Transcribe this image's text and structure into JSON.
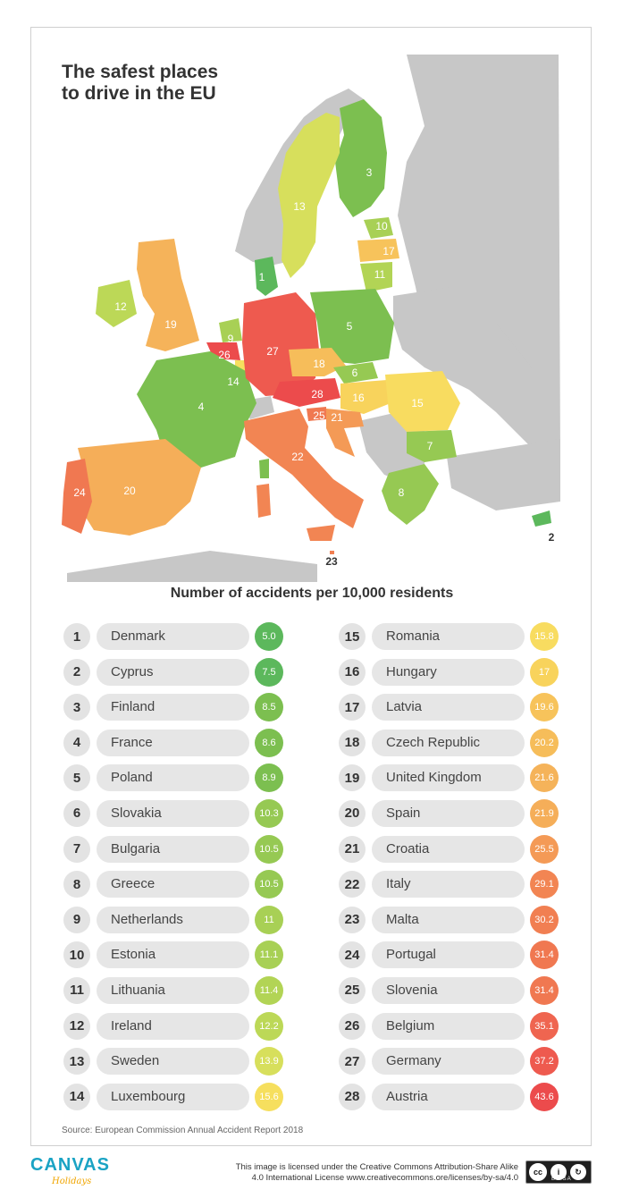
{
  "title": {
    "line1": "The safest places",
    "line2": "to drive in the EU"
  },
  "subtitle": "Number of accidents per 10,000 residents",
  "map_labels": [
    "1",
    "2",
    "3",
    "4",
    "5",
    "6",
    "7",
    "8",
    "9",
    "10",
    "11",
    "12",
    "13",
    "14",
    "15",
    "16",
    "17",
    "18",
    "19",
    "20",
    "21",
    "22",
    "23",
    "24",
    "25",
    "26",
    "27",
    "28"
  ],
  "colors": {
    "dark_green": "#5cb85c",
    "green": "#8bc34a",
    "light_green": "#b5d654",
    "yellow_green": "#d8df5c",
    "yellow": "#f9d55a",
    "light_orange": "#f7c05c",
    "orange": "#f5a35a",
    "dark_orange": "#f07f50",
    "red": "#ef5350",
    "non_eu": "#c7c7c7",
    "ocean": "#ffffff"
  },
  "ranking_left": [
    {
      "rank": "1",
      "country": "Denmark",
      "value": "5.0",
      "color": "#5cb85c"
    },
    {
      "rank": "2",
      "country": "Cyprus",
      "value": "7.5",
      "color": "#5cb85c"
    },
    {
      "rank": "3",
      "country": "Finland",
      "value": "8.5",
      "color": "#7cbf50"
    },
    {
      "rank": "4",
      "country": "France",
      "value": "8.6",
      "color": "#7cbf50"
    },
    {
      "rank": "5",
      "country": "Poland",
      "value": "8.9",
      "color": "#7cbf50"
    },
    {
      "rank": "6",
      "country": "Slovakia",
      "value": "10.3",
      "color": "#96c953"
    },
    {
      "rank": "7",
      "country": "Bulgaria",
      "value": "10.5",
      "color": "#96c953"
    },
    {
      "rank": "8",
      "country": "Greece",
      "value": "10.5",
      "color": "#96c953"
    },
    {
      "rank": "9",
      "country": "Netherlands",
      "value": "11",
      "color": "#a8d055"
    },
    {
      "rank": "10",
      "country": "Estonia",
      "value": "11.1",
      "color": "#a8d055"
    },
    {
      "rank": "11",
      "country": "Lithuania",
      "value": "11.4",
      "color": "#b2d455"
    },
    {
      "rank": "12",
      "country": "Ireland",
      "value": "12.2",
      "color": "#bcd857"
    },
    {
      "rank": "13",
      "country": "Sweden",
      "value": "13.9",
      "color": "#d7df5c"
    },
    {
      "rank": "14",
      "country": "Luxembourg",
      "value": "15.6",
      "color": "#f6df5e"
    }
  ],
  "ranking_right": [
    {
      "rank": "15",
      "country": "Romania",
      "value": "15.8",
      "color": "#f8dc60"
    },
    {
      "rank": "16",
      "country": "Hungary",
      "value": "17",
      "color": "#f8d35c"
    },
    {
      "rank": "17",
      "country": "Latvia",
      "value": "19.6",
      "color": "#f7c35b"
    },
    {
      "rank": "18",
      "country": "Czech Republic",
      "value": "20.2",
      "color": "#f6bd5a"
    },
    {
      "rank": "19",
      "country": "United Kingdom",
      "value": "21.6",
      "color": "#f5b35a"
    },
    {
      "rank": "20",
      "country": "Spain",
      "value": "21.9",
      "color": "#f5ae59"
    },
    {
      "rank": "21",
      "country": "Croatia",
      "value": "25.5",
      "color": "#f49a56"
    },
    {
      "rank": "22",
      "country": "Italy",
      "value": "29.1",
      "color": "#f28553"
    },
    {
      "rank": "23",
      "country": "Malta",
      "value": "30.2",
      "color": "#f17f52"
    },
    {
      "rank": "24",
      "country": "Portugal",
      "value": "31.4",
      "color": "#f07851"
    },
    {
      "rank": "25",
      "country": "Slovenia",
      "value": "31.4",
      "color": "#f07851"
    },
    {
      "rank": "26",
      "country": "Belgium",
      "value": "35.1",
      "color": "#ef6550"
    },
    {
      "rank": "27",
      "country": "Germany",
      "value": "37.2",
      "color": "#ee5a4f"
    },
    {
      "rank": "28",
      "country": "Austria",
      "value": "43.6",
      "color": "#ec4b4c"
    }
  ],
  "source": "Source: European Commission Annual Accident Report 2018",
  "footer": {
    "logo": "CANVAS",
    "logo_sub": "Holidays",
    "license_line1": "This image is licensed under the Creative Commons Attribution-Share Alike",
    "license_line2": "4.0 International License www.creativecommons.ore/licenses/by-sa/4.0",
    "cc_badge_text": "BY SA"
  }
}
